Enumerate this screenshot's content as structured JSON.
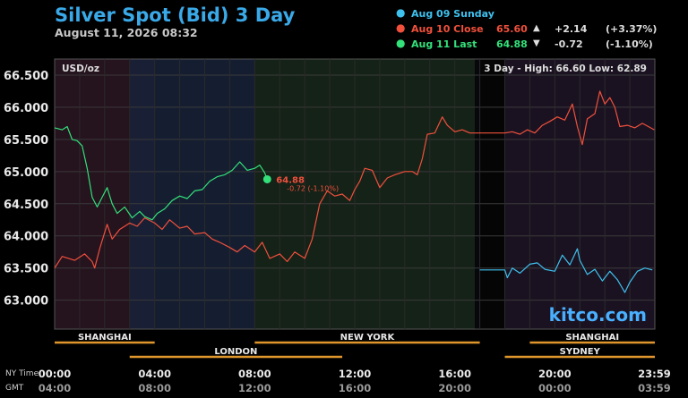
{
  "header": {
    "title": "Silver Spot (Bid) 3 Day",
    "subtitle": "August 11, 2026 08:32"
  },
  "legend": [
    {
      "label": "Aug 09 Sunday",
      "value": "",
      "arrow": "",
      "change": "",
      "pct": "",
      "color": "#3ec1ee"
    },
    {
      "label": "Aug 10 Close",
      "value": "65.60",
      "arrow": "▲",
      "change": "+2.14",
      "pct": "(+3.37%)",
      "color": "#f0503c"
    },
    {
      "label": "Aug 11 Last",
      "value": "64.88",
      "arrow": "▼",
      "change": "-0.72",
      "pct": "(-1.10%)",
      "color": "#33e07a"
    }
  ],
  "chart_data": {
    "type": "line",
    "unit": "USD/oz",
    "stats": "3 Day - High: 66.60  Low: 62.89",
    "watermark": "kitco.com",
    "ylim": [
      62.55,
      66.75
    ],
    "xlim": [
      0,
      24
    ],
    "yticks": [
      "66.500",
      "66.000",
      "65.500",
      "65.000",
      "64.500",
      "64.000",
      "63.500",
      "63.000"
    ],
    "ytick_values": [
      66.5,
      66.0,
      65.5,
      65.0,
      64.5,
      64.0,
      63.5,
      63.0
    ],
    "xticks_ny": [
      "00:00",
      "04:00",
      "08:00",
      "12:00",
      "16:00",
      "20:00",
      "23:59"
    ],
    "xticks_gmt": [
      "04:00",
      "08:00",
      "12:00",
      "16:00",
      "20:00",
      "00:00",
      "03:59"
    ],
    "xtick_values": [
      0,
      4,
      8,
      12,
      16,
      20,
      23.98
    ],
    "row_labels": [
      "NY Time",
      "GMT"
    ],
    "last_label": {
      "price": "64.88",
      "change": "-0.72 (-1.10%)",
      "x": 8.5,
      "y": 64.88
    },
    "sessions": [
      {
        "name": "SHANGHAI",
        "start": 0,
        "end": 4,
        "row": 1
      },
      {
        "name": "NEW YORK",
        "start": 8,
        "end": 17,
        "row": 1
      },
      {
        "name": "SHANGHAI",
        "start": 19,
        "end": 24,
        "row": 1
      },
      {
        "name": "LONDON",
        "start": 3,
        "end": 11.5,
        "row": 2
      },
      {
        "name": "SYDNEY",
        "start": 18,
        "end": 24,
        "row": 2
      }
    ],
    "series": [
      {
        "name": "Aug 09 Sunday",
        "color": "#3ec1ee",
        "values": [
          [
            17.0,
            63.47
          ],
          [
            18.0,
            63.47
          ],
          [
            18.1,
            63.35
          ],
          [
            18.3,
            63.5
          ],
          [
            18.6,
            63.42
          ],
          [
            19.0,
            63.56
          ],
          [
            19.3,
            63.58
          ],
          [
            19.6,
            63.48
          ],
          [
            20.0,
            63.45
          ],
          [
            20.3,
            63.7
          ],
          [
            20.6,
            63.55
          ],
          [
            20.9,
            63.8
          ],
          [
            21.0,
            63.62
          ],
          [
            21.3,
            63.4
          ],
          [
            21.6,
            63.48
          ],
          [
            21.9,
            63.3
          ],
          [
            22.2,
            63.45
          ],
          [
            22.5,
            63.32
          ],
          [
            22.8,
            63.12
          ],
          [
            23.0,
            63.28
          ],
          [
            23.3,
            63.45
          ],
          [
            23.6,
            63.5
          ],
          [
            23.9,
            63.47
          ]
        ]
      },
      {
        "name": "Aug 10 Close",
        "color": "#f0503c",
        "values": [
          [
            0.0,
            63.5
          ],
          [
            0.3,
            63.68
          ],
          [
            0.8,
            63.62
          ],
          [
            1.2,
            63.72
          ],
          [
            1.5,
            63.6
          ],
          [
            1.6,
            63.5
          ],
          [
            1.8,
            63.8
          ],
          [
            2.1,
            64.18
          ],
          [
            2.3,
            63.95
          ],
          [
            2.6,
            64.1
          ],
          [
            3.0,
            64.2
          ],
          [
            3.3,
            64.15
          ],
          [
            3.6,
            64.28
          ],
          [
            4.0,
            64.2
          ],
          [
            4.3,
            64.1
          ],
          [
            4.6,
            64.25
          ],
          [
            5.0,
            64.12
          ],
          [
            5.3,
            64.15
          ],
          [
            5.6,
            64.03
          ],
          [
            6.0,
            64.05
          ],
          [
            6.3,
            63.95
          ],
          [
            6.6,
            63.9
          ],
          [
            7.0,
            63.82
          ],
          [
            7.3,
            63.75
          ],
          [
            7.6,
            63.85
          ],
          [
            8.0,
            63.75
          ],
          [
            8.3,
            63.9
          ],
          [
            8.6,
            63.65
          ],
          [
            9.0,
            63.72
          ],
          [
            9.3,
            63.6
          ],
          [
            9.6,
            63.75
          ],
          [
            10.0,
            63.65
          ],
          [
            10.3,
            63.95
          ],
          [
            10.6,
            64.5
          ],
          [
            10.9,
            64.7
          ],
          [
            11.2,
            64.62
          ],
          [
            11.5,
            64.65
          ],
          [
            11.8,
            64.55
          ],
          [
            12.0,
            64.72
          ],
          [
            12.2,
            64.85
          ],
          [
            12.4,
            65.05
          ],
          [
            12.7,
            65.02
          ],
          [
            13.0,
            64.75
          ],
          [
            13.3,
            64.9
          ],
          [
            13.6,
            64.95
          ],
          [
            14.0,
            65.0
          ],
          [
            14.3,
            65.0
          ],
          [
            14.5,
            64.95
          ],
          [
            14.7,
            65.2
          ],
          [
            14.9,
            65.58
          ],
          [
            15.2,
            65.6
          ],
          [
            15.5,
            65.85
          ],
          [
            15.7,
            65.72
          ],
          [
            16.0,
            65.62
          ],
          [
            16.3,
            65.65
          ],
          [
            16.6,
            65.6
          ],
          [
            17.0,
            65.6
          ],
          [
            18.0,
            65.6
          ],
          [
            18.3,
            65.62
          ],
          [
            18.6,
            65.58
          ],
          [
            18.9,
            65.65
          ],
          [
            19.2,
            65.6
          ],
          [
            19.5,
            65.72
          ],
          [
            19.8,
            65.78
          ],
          [
            20.1,
            65.85
          ],
          [
            20.4,
            65.8
          ],
          [
            20.7,
            66.05
          ],
          [
            20.9,
            65.7
          ],
          [
            21.1,
            65.42
          ],
          [
            21.3,
            65.82
          ],
          [
            21.6,
            65.9
          ],
          [
            21.8,
            66.25
          ],
          [
            22.0,
            66.05
          ],
          [
            22.2,
            66.15
          ],
          [
            22.4,
            66.0
          ],
          [
            22.6,
            65.7
          ],
          [
            22.9,
            65.72
          ],
          [
            23.2,
            65.68
          ],
          [
            23.5,
            65.75
          ],
          [
            23.98,
            65.65
          ]
        ]
      },
      {
        "name": "Aug 11 Last",
        "color": "#33e07a",
        "values": [
          [
            0.0,
            65.68
          ],
          [
            0.3,
            65.65
          ],
          [
            0.5,
            65.7
          ],
          [
            0.7,
            65.5
          ],
          [
            0.9,
            65.48
          ],
          [
            1.1,
            65.4
          ],
          [
            1.3,
            65.05
          ],
          [
            1.5,
            64.6
          ],
          [
            1.7,
            64.45
          ],
          [
            1.9,
            64.6
          ],
          [
            2.1,
            64.75
          ],
          [
            2.3,
            64.5
          ],
          [
            2.5,
            64.35
          ],
          [
            2.8,
            64.45
          ],
          [
            3.1,
            64.28
          ],
          [
            3.4,
            64.38
          ],
          [
            3.6,
            64.3
          ],
          [
            3.9,
            64.25
          ],
          [
            4.1,
            64.35
          ],
          [
            4.4,
            64.42
          ],
          [
            4.7,
            64.55
          ],
          [
            5.0,
            64.62
          ],
          [
            5.3,
            64.58
          ],
          [
            5.6,
            64.7
          ],
          [
            5.9,
            64.72
          ],
          [
            6.2,
            64.85
          ],
          [
            6.5,
            64.92
          ],
          [
            6.8,
            64.95
          ],
          [
            7.1,
            65.02
          ],
          [
            7.4,
            65.15
          ],
          [
            7.7,
            65.02
          ],
          [
            8.0,
            65.05
          ],
          [
            8.2,
            65.1
          ],
          [
            8.4,
            64.98
          ],
          [
            8.5,
            64.88
          ]
        ]
      }
    ]
  }
}
